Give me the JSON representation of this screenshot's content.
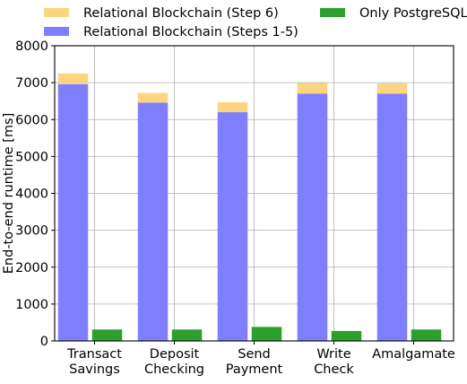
{
  "chart_data": {
    "type": "bar",
    "stacked": true,
    "title": "",
    "xlabel": "",
    "ylabel": "End-to-end runtime [ms]",
    "ylim": [
      0,
      8000
    ],
    "yticks": [
      0,
      1000,
      2000,
      3000,
      4000,
      5000,
      6000,
      7000,
      8000
    ],
    "grid": true,
    "legend_position": "top, outside plot",
    "categories": [
      [
        "Transact",
        "Savings"
      ],
      [
        "Deposit",
        "Checking"
      ],
      [
        "Send",
        "Payment"
      ],
      [
        "Write",
        "Check"
      ],
      [
        "Amalgamate"
      ]
    ],
    "series": [
      {
        "name": "Relational Blockchain (Steps 1-5)",
        "group": "blockchain",
        "color": "#7f7ffd",
        "values": [
          6960,
          6460,
          6200,
          6700,
          6700
        ]
      },
      {
        "name": "Relational Blockchain (Step 6)",
        "group": "blockchain",
        "stacked_on": "Relational Blockchain (Steps 1-5)",
        "color": "#fdd47f",
        "values": [
          290,
          260,
          270,
          290,
          280
        ]
      },
      {
        "name": "Only PostgreSQL",
        "group": "postgres",
        "color": "#2ca02c",
        "values": [
          310,
          310,
          380,
          270,
          310
        ]
      }
    ],
    "legend_order": [
      "Relational Blockchain (Step 6)",
      "Only PostgreSQL",
      "Relational Blockchain (Steps 1-5)"
    ]
  }
}
